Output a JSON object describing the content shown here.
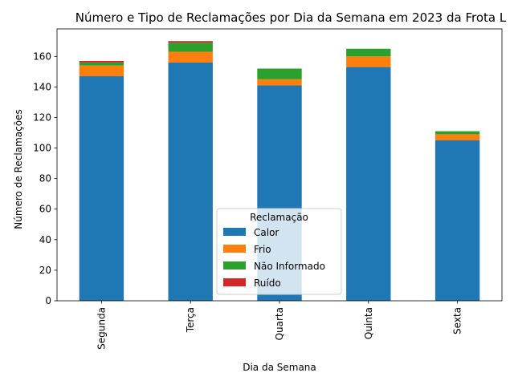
{
  "chart_data": {
    "type": "bar",
    "stacked": true,
    "title": "Número e Tipo de Reclamações por Dia da Semana em 2023 da Frota L",
    "xlabel": "Dia da Semana",
    "ylabel": "Número de Reclamações",
    "categories": [
      "Segunda",
      "Terça",
      "Quarta",
      "Quinta",
      "Sexta"
    ],
    "ylim": [
      0,
      178
    ],
    "yticks": [
      0,
      20,
      40,
      60,
      80,
      100,
      120,
      140,
      160
    ],
    "legend": {
      "title": "Reclamação",
      "placement": "lower-center"
    },
    "series": [
      {
        "name": "Calor",
        "color": "#1f77b4",
        "values": [
          147,
          156,
          141,
          153,
          105
        ]
      },
      {
        "name": "Frio",
        "color": "#ff7f0e",
        "values": [
          7,
          7,
          4,
          7,
          4
        ]
      },
      {
        "name": "Não Informado",
        "color": "#2ca02c",
        "values": [
          2,
          6,
          7,
          5,
          2
        ]
      },
      {
        "name": "Ruído",
        "color": "#d62728",
        "values": [
          1,
          1,
          0,
          0,
          0
        ]
      }
    ]
  }
}
